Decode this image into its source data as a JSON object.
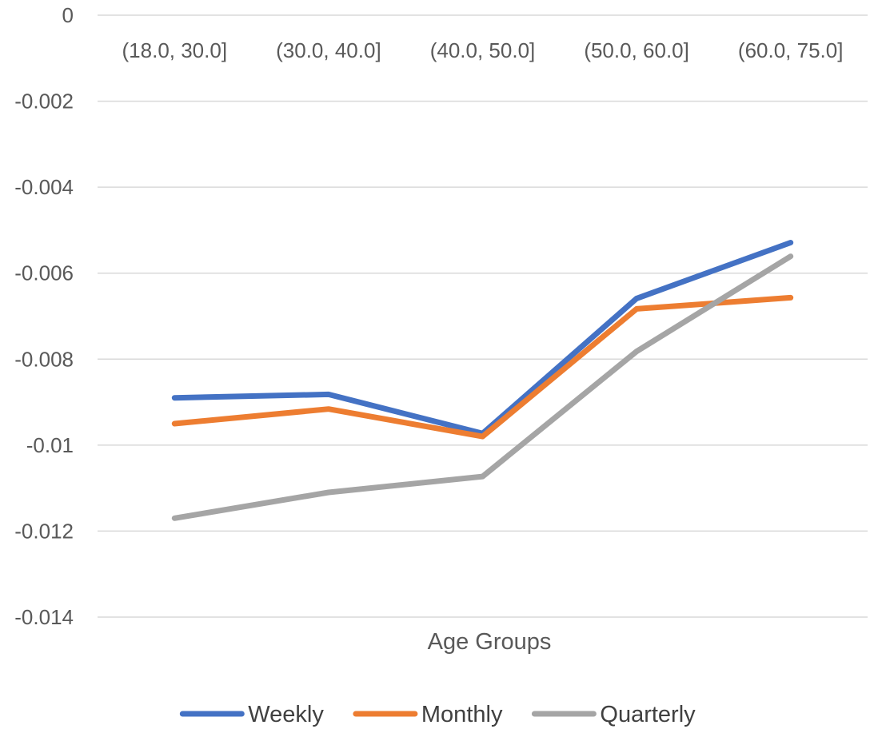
{
  "chart_data": {
    "type": "line",
    "title": "",
    "xlabel": "Age Groups",
    "ylabel": "",
    "categories": [
      "(18.0, 30.0]",
      "(30.0, 40.0]",
      "(40.0, 50.0]",
      "(50.0, 60.0]",
      "(60.0, 75.0]"
    ],
    "ylim": [
      -0.014,
      0
    ],
    "y_ticks": [
      0,
      -0.002,
      -0.004,
      -0.006,
      -0.008,
      -0.01,
      -0.012,
      -0.014
    ],
    "y_tick_labels": [
      "0",
      "-0.002",
      "-0.004",
      "-0.006",
      "-0.008",
      "-0.01",
      "-0.012",
      "-0.014"
    ],
    "x_axis_labels_position": "top",
    "grid": true,
    "legend_position": "bottom",
    "series": [
      {
        "name": "Weekly",
        "color": "#4472C4",
        "values": [
          -0.0089,
          -0.00882,
          -0.00973,
          -0.00659,
          -0.00529
        ]
      },
      {
        "name": "Monthly",
        "color": "#ED7D31",
        "values": [
          -0.0095,
          -0.00916,
          -0.0098,
          -0.00683,
          -0.00657
        ]
      },
      {
        "name": "Quarterly",
        "color": "#A5A5A5",
        "values": [
          -0.0117,
          -0.0111,
          -0.01073,
          -0.00782,
          -0.00561
        ]
      }
    ]
  }
}
